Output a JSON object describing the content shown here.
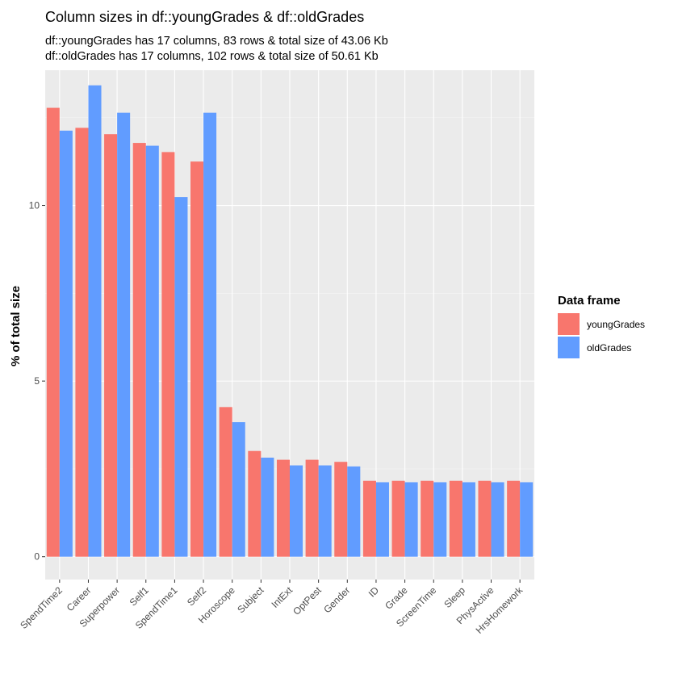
{
  "chart_data": {
    "type": "bar",
    "title": "Column sizes in df::youngGrades & df::oldGrades",
    "subtitle_lines": [
      "df::youngGrades has 17 columns, 83 rows & total size of 43.06 Kb",
      "df::oldGrades has 17 columns, 102 rows & total size of 50.61 Kb"
    ],
    "xlabel": "",
    "ylabel": "% of total size",
    "ylim": [
      -0.65,
      13.85
    ],
    "y_ticks": [
      0,
      5,
      10
    ],
    "grid": true,
    "legend": {
      "title": "Data frame",
      "position": "right"
    },
    "categories": [
      "SpendTime2",
      "Career",
      "Superpower",
      "Self1",
      "SpendTime1",
      "Self2",
      "Horoscope",
      "Subject",
      "IntExt",
      "OptPest",
      "Gender",
      "ID",
      "Grade",
      "ScreenTime",
      "Sleep",
      "PhysActive",
      "HrsHomework"
    ],
    "series": [
      {
        "name": "youngGrades",
        "color": "#F8766D",
        "values": [
          12.78,
          12.21,
          12.03,
          11.78,
          11.52,
          11.25,
          4.26,
          3.01,
          2.76,
          2.76,
          2.7,
          2.16,
          2.16,
          2.16,
          2.16,
          2.16,
          2.16
        ]
      },
      {
        "name": "oldGrades",
        "color": "#619CFF",
        "values": [
          12.13,
          13.42,
          12.64,
          11.7,
          10.24,
          12.64,
          3.83,
          2.82,
          2.6,
          2.6,
          2.57,
          2.12,
          2.12,
          2.12,
          2.12,
          2.12,
          2.12
        ]
      }
    ]
  }
}
